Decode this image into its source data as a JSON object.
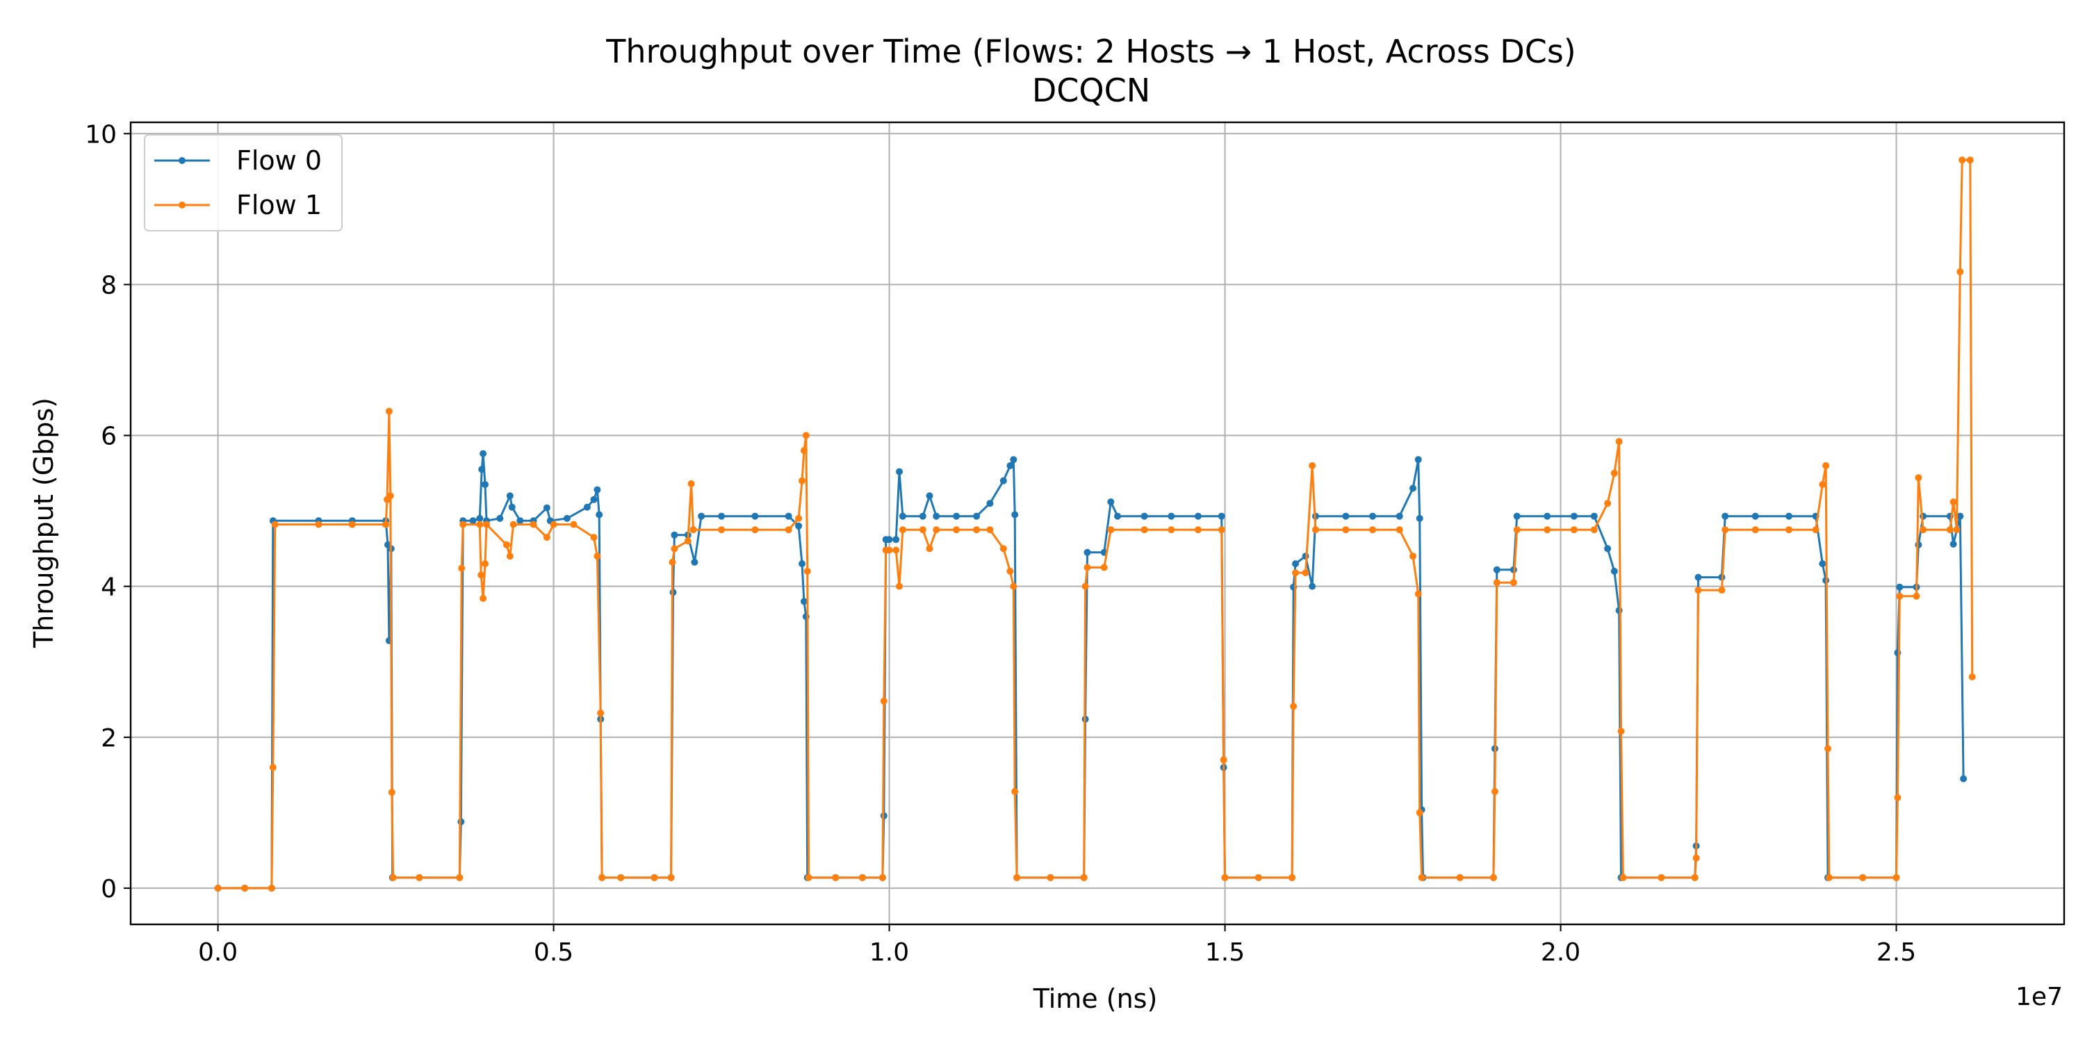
{
  "chart_data": {
    "type": "line",
    "title": "Throughput over Time (Flows: 2 Hosts → 1 Host, Across DCs)",
    "subtitle": "DCQCN",
    "xlabel": "Time (ns)",
    "ylabel": "Throughput (Gbps)",
    "x_offset_label": "1e7",
    "xlim": [
      -1300000,
      27500000
    ],
    "ylim": [
      -0.48,
      10.15
    ],
    "x_ticks": [
      0,
      5000000,
      10000000,
      15000000,
      20000000,
      25000000
    ],
    "x_tick_labels": [
      "0.0",
      "0.5",
      "1.0",
      "1.5",
      "2.0",
      "2.5"
    ],
    "y_ticks": [
      0,
      2,
      4,
      6,
      8,
      10
    ],
    "y_tick_labels": [
      "0",
      "2",
      "4",
      "6",
      "8",
      "10"
    ],
    "grid": true,
    "legend_position": "top-left",
    "series": [
      {
        "name": "Flow 0",
        "color": "#1f77b4",
        "points": [
          [
            0,
            0
          ],
          [
            400000,
            0
          ],
          [
            800000,
            0
          ],
          [
            820000,
            4.87
          ],
          [
            1500000,
            4.87
          ],
          [
            2000000,
            4.87
          ],
          [
            2500000,
            4.87
          ],
          [
            2530000,
            4.55
          ],
          [
            2550000,
            3.28
          ],
          [
            2580000,
            4.5
          ],
          [
            2600000,
            0.14
          ],
          [
            3000000,
            0.14
          ],
          [
            3600000,
            0.14
          ],
          [
            3620000,
            0.88
          ],
          [
            3650000,
            4.87
          ],
          [
            3800000,
            4.87
          ],
          [
            3900000,
            4.9
          ],
          [
            3930000,
            5.55
          ],
          [
            3950000,
            5.76
          ],
          [
            3980000,
            5.35
          ],
          [
            4000000,
            4.87
          ],
          [
            4200000,
            4.9
          ],
          [
            4350000,
            5.2
          ],
          [
            4380000,
            5.05
          ],
          [
            4500000,
            4.87
          ],
          [
            4700000,
            4.87
          ],
          [
            4900000,
            5.04
          ],
          [
            4950000,
            4.87
          ],
          [
            5200000,
            4.9
          ],
          [
            5500000,
            5.05
          ],
          [
            5600000,
            5.15
          ],
          [
            5650000,
            5.28
          ],
          [
            5680000,
            4.95
          ],
          [
            5700000,
            2.24
          ],
          [
            5720000,
            0.14
          ],
          [
            6000000,
            0.14
          ],
          [
            6500000,
            0.14
          ],
          [
            6750000,
            0.14
          ],
          [
            6780000,
            3.92
          ],
          [
            6800000,
            4.68
          ],
          [
            7000000,
            4.68
          ],
          [
            7100000,
            4.32
          ],
          [
            7200000,
            4.93
          ],
          [
            7500000,
            4.93
          ],
          [
            8000000,
            4.93
          ],
          [
            8500000,
            4.93
          ],
          [
            8650000,
            4.8
          ],
          [
            8700000,
            4.3
          ],
          [
            8730000,
            3.8
          ],
          [
            8760000,
            3.6
          ],
          [
            8780000,
            0.14
          ],
          [
            9200000,
            0.14
          ],
          [
            9600000,
            0.14
          ],
          [
            9900000,
            0.14
          ],
          [
            9920000,
            0.96
          ],
          [
            9950000,
            4.62
          ],
          [
            10000000,
            4.62
          ],
          [
            10100000,
            4.62
          ],
          [
            10150000,
            5.52
          ],
          [
            10200000,
            4.93
          ],
          [
            10500000,
            4.93
          ],
          [
            10600000,
            5.2
          ],
          [
            10700000,
            4.93
          ],
          [
            11000000,
            4.93
          ],
          [
            11300000,
            4.93
          ],
          [
            11500000,
            5.1
          ],
          [
            11700000,
            5.4
          ],
          [
            11800000,
            5.6
          ],
          [
            11850000,
            5.68
          ],
          [
            11870000,
            4.95
          ],
          [
            11900000,
            0.14
          ],
          [
            12400000,
            0.14
          ],
          [
            12900000,
            0.14
          ],
          [
            12920000,
            2.24
          ],
          [
            12950000,
            4.45
          ],
          [
            13200000,
            4.45
          ],
          [
            13300000,
            5.12
          ],
          [
            13400000,
            4.93
          ],
          [
            13800000,
            4.93
          ],
          [
            14200000,
            4.93
          ],
          [
            14600000,
            4.93
          ],
          [
            14950000,
            4.93
          ],
          [
            14980000,
            1.6
          ],
          [
            15000000,
            0.14
          ],
          [
            15500000,
            0.14
          ],
          [
            16000000,
            0.14
          ],
          [
            16020000,
            3.99
          ],
          [
            16050000,
            4.3
          ],
          [
            16200000,
            4.4
          ],
          [
            16300000,
            4.0
          ],
          [
            16350000,
            4.93
          ],
          [
            16800000,
            4.93
          ],
          [
            17200000,
            4.93
          ],
          [
            17600000,
            4.93
          ],
          [
            17800000,
            5.3
          ],
          [
            17880000,
            5.68
          ],
          [
            17900000,
            4.9
          ],
          [
            17930000,
            1.04
          ],
          [
            17950000,
            0.14
          ],
          [
            18500000,
            0.14
          ],
          [
            19000000,
            0.14
          ],
          [
            19020000,
            1.85
          ],
          [
            19050000,
            4.22
          ],
          [
            19300000,
            4.22
          ],
          [
            19350000,
            4.93
          ],
          [
            19800000,
            4.93
          ],
          [
            20200000,
            4.93
          ],
          [
            20500000,
            4.93
          ],
          [
            20700000,
            4.5
          ],
          [
            20800000,
            4.2
          ],
          [
            20870000,
            3.68
          ],
          [
            20900000,
            0.14
          ],
          [
            21500000,
            0.14
          ],
          [
            22000000,
            0.14
          ],
          [
            22020000,
            0.56
          ],
          [
            22050000,
            4.12
          ],
          [
            22400000,
            4.12
          ],
          [
            22450000,
            4.93
          ],
          [
            22900000,
            4.93
          ],
          [
            23400000,
            4.93
          ],
          [
            23800000,
            4.93
          ],
          [
            23900000,
            4.3
          ],
          [
            23950000,
            4.08
          ],
          [
            23980000,
            0.14
          ],
          [
            24500000,
            0.14
          ],
          [
            25000000,
            0.14
          ],
          [
            25020000,
            3.12
          ],
          [
            25050000,
            3.99
          ],
          [
            25300000,
            3.99
          ],
          [
            25330000,
            4.55
          ],
          [
            25400000,
            4.93
          ],
          [
            25800000,
            4.93
          ],
          [
            25850000,
            4.56
          ],
          [
            25950000,
            4.93
          ],
          [
            26000000,
            1.45
          ]
        ]
      },
      {
        "name": "Flow 1",
        "color": "#ff7f0e",
        "points": [
          [
            0,
            0
          ],
          [
            400000,
            0
          ],
          [
            800000,
            0
          ],
          [
            820000,
            1.6
          ],
          [
            850000,
            4.82
          ],
          [
            1500000,
            4.82
          ],
          [
            2000000,
            4.82
          ],
          [
            2500000,
            4.82
          ],
          [
            2520000,
            5.15
          ],
          [
            2550000,
            6.32
          ],
          [
            2570000,
            5.2
          ],
          [
            2590000,
            1.27
          ],
          [
            2610000,
            0.14
          ],
          [
            3000000,
            0.14
          ],
          [
            3600000,
            0.14
          ],
          [
            3630000,
            4.24
          ],
          [
            3650000,
            4.82
          ],
          [
            3900000,
            4.82
          ],
          [
            3920000,
            4.15
          ],
          [
            3950000,
            3.84
          ],
          [
            3980000,
            4.3
          ],
          [
            4000000,
            4.82
          ],
          [
            4300000,
            4.55
          ],
          [
            4350000,
            4.4
          ],
          [
            4400000,
            4.82
          ],
          [
            4700000,
            4.82
          ],
          [
            4900000,
            4.65
          ],
          [
            5000000,
            4.82
          ],
          [
            5300000,
            4.82
          ],
          [
            5600000,
            4.65
          ],
          [
            5650000,
            4.4
          ],
          [
            5700000,
            2.32
          ],
          [
            5720000,
            0.14
          ],
          [
            6000000,
            0.14
          ],
          [
            6500000,
            0.14
          ],
          [
            6750000,
            0.14
          ],
          [
            6770000,
            4.32
          ],
          [
            6800000,
            4.5
          ],
          [
            7000000,
            4.6
          ],
          [
            7050000,
            5.36
          ],
          [
            7080000,
            4.75
          ],
          [
            7500000,
            4.75
          ],
          [
            8000000,
            4.75
          ],
          [
            8500000,
            4.75
          ],
          [
            8650000,
            4.9
          ],
          [
            8700000,
            5.4
          ],
          [
            8730000,
            5.8
          ],
          [
            8760000,
            6.0
          ],
          [
            8780000,
            4.2
          ],
          [
            8800000,
            0.14
          ],
          [
            9200000,
            0.14
          ],
          [
            9600000,
            0.14
          ],
          [
            9900000,
            0.14
          ],
          [
            9920000,
            2.48
          ],
          [
            9950000,
            4.48
          ],
          [
            10000000,
            4.48
          ],
          [
            10100000,
            4.48
          ],
          [
            10150000,
            4.0
          ],
          [
            10200000,
            4.75
          ],
          [
            10500000,
            4.75
          ],
          [
            10600000,
            4.5
          ],
          [
            10700000,
            4.75
          ],
          [
            11000000,
            4.75
          ],
          [
            11300000,
            4.75
          ],
          [
            11500000,
            4.75
          ],
          [
            11700000,
            4.5
          ],
          [
            11800000,
            4.2
          ],
          [
            11850000,
            4.0
          ],
          [
            11870000,
            1.28
          ],
          [
            11900000,
            0.14
          ],
          [
            12400000,
            0.14
          ],
          [
            12900000,
            0.14
          ],
          [
            12920000,
            4.0
          ],
          [
            12950000,
            4.25
          ],
          [
            13200000,
            4.25
          ],
          [
            13300000,
            4.75
          ],
          [
            13800000,
            4.75
          ],
          [
            14200000,
            4.75
          ],
          [
            14600000,
            4.75
          ],
          [
            14950000,
            4.75
          ],
          [
            14980000,
            1.7
          ],
          [
            15000000,
            0.14
          ],
          [
            15500000,
            0.14
          ],
          [
            16000000,
            0.14
          ],
          [
            16020000,
            2.41
          ],
          [
            16050000,
            4.18
          ],
          [
            16200000,
            4.18
          ],
          [
            16300000,
            5.6
          ],
          [
            16350000,
            4.75
          ],
          [
            16800000,
            4.75
          ],
          [
            17200000,
            4.75
          ],
          [
            17600000,
            4.75
          ],
          [
            17800000,
            4.4
          ],
          [
            17880000,
            3.9
          ],
          [
            17900000,
            1.0
          ],
          [
            17930000,
            0.14
          ],
          [
            18500000,
            0.14
          ],
          [
            19000000,
            0.14
          ],
          [
            19020000,
            1.28
          ],
          [
            19050000,
            4.05
          ],
          [
            19300000,
            4.05
          ],
          [
            19350000,
            4.75
          ],
          [
            19800000,
            4.75
          ],
          [
            20200000,
            4.75
          ],
          [
            20500000,
            4.75
          ],
          [
            20700000,
            5.1
          ],
          [
            20800000,
            5.5
          ],
          [
            20870000,
            5.92
          ],
          [
            20900000,
            2.08
          ],
          [
            20930000,
            0.14
          ],
          [
            21500000,
            0.14
          ],
          [
            22000000,
            0.14
          ],
          [
            22020000,
            0.4
          ],
          [
            22050000,
            3.95
          ],
          [
            22400000,
            3.95
          ],
          [
            22450000,
            4.75
          ],
          [
            22900000,
            4.75
          ],
          [
            23400000,
            4.75
          ],
          [
            23800000,
            4.75
          ],
          [
            23900000,
            5.35
          ],
          [
            23950000,
            5.6
          ],
          [
            23980000,
            1.85
          ],
          [
            24000000,
            0.14
          ],
          [
            24500000,
            0.14
          ],
          [
            25000000,
            0.14
          ],
          [
            25020000,
            1.2
          ],
          [
            25050000,
            3.87
          ],
          [
            25300000,
            3.87
          ],
          [
            25330000,
            5.44
          ],
          [
            25400000,
            4.75
          ],
          [
            25800000,
            4.75
          ],
          [
            25850000,
            5.12
          ],
          [
            25900000,
            4.75
          ],
          [
            25950000,
            8.17
          ],
          [
            25980000,
            9.65
          ],
          [
            26100000,
            9.65
          ],
          [
            26130000,
            2.8
          ]
        ]
      }
    ]
  }
}
